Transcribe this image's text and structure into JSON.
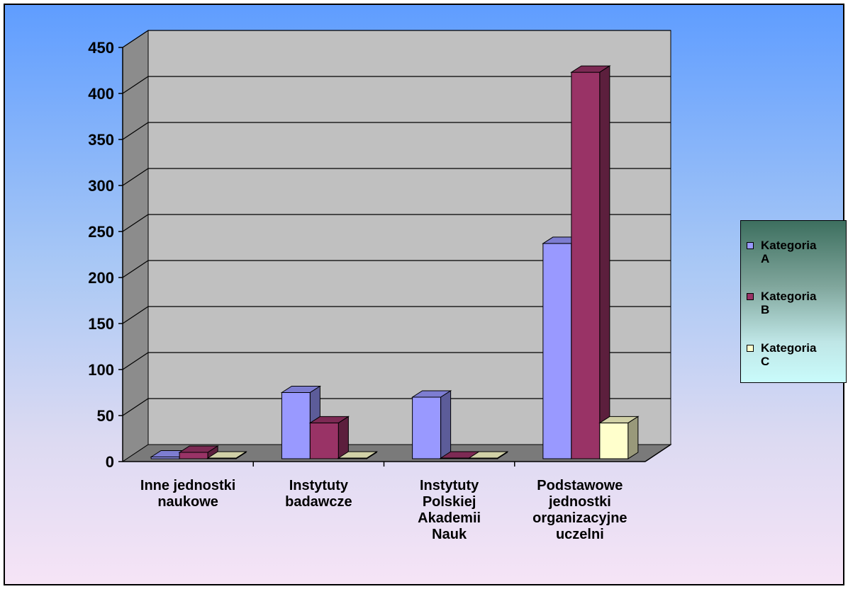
{
  "chart_data": {
    "type": "bar",
    "categories": [
      [
        "Inne jednostki",
        "naukowe"
      ],
      [
        "Instytuty",
        "badawcze"
      ],
      [
        "Instytuty",
        "Polskiej",
        "Akademii",
        "Nauk"
      ],
      [
        "Podstawowe",
        "jednostki",
        "organizacyjne",
        "uczelni"
      ]
    ],
    "series": [
      {
        "name": "Kategoria A",
        "color": "#9999ff",
        "values": [
          5,
          75,
          70,
          237
        ]
      },
      {
        "name": "Kategoria B",
        "color": "#993366",
        "values": [
          10,
          42,
          1,
          423
        ]
      },
      {
        "name": "Kategoria C",
        "color": "#ffffcc",
        "values": [
          3,
          1,
          0,
          42
        ]
      }
    ],
    "ylim": [
      0,
      450
    ],
    "yticks": [
      0,
      50,
      100,
      150,
      200,
      250,
      300,
      350,
      400,
      450
    ],
    "grid": true,
    "legend_position": "right",
    "title": "",
    "xlabel": "",
    "ylabel": ""
  },
  "legend": {
    "items": [
      {
        "line1": "Kategoria",
        "line2": "A"
      },
      {
        "line1": "Kategoria",
        "line2": "B"
      },
      {
        "line1": "Kategoria",
        "line2": "C"
      }
    ]
  }
}
